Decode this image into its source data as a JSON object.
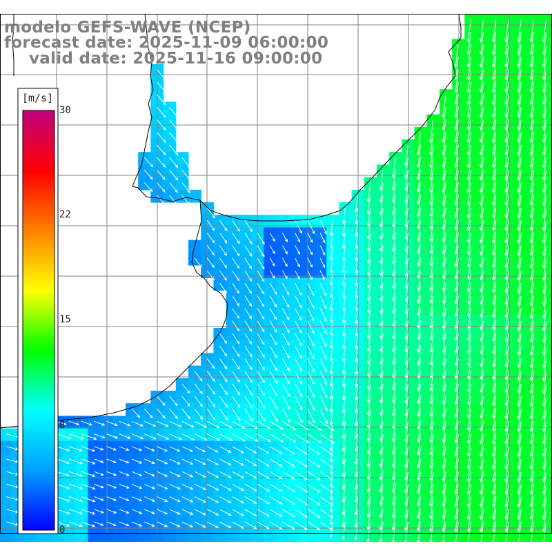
{
  "title": {
    "model": "modelo GEFS-WAVE (NCEP)",
    "forecast": "forecast date: 2025-11-09 06:00:00",
    "valid": "valid date: 2025-11-16 09:00:00"
  },
  "colorbar": {
    "unit": "[m/s]",
    "ticks": [
      "30",
      "22",
      "15",
      "8",
      "0"
    ],
    "tick_values": [
      30,
      22,
      15,
      8,
      0
    ],
    "colors": [
      "#0000ff",
      "#00a0ff",
      "#00ffff",
      "#00ff00",
      "#ffff00",
      "#ff8000",
      "#ff0000",
      "#c00080"
    ]
  },
  "map": {
    "quantity": "wind speed",
    "units": "m/s",
    "variable_colors": {
      "land": "#ffffff",
      "coast": "#000000",
      "grid": "#808080",
      "arrow": "#ffffff"
    }
  }
}
